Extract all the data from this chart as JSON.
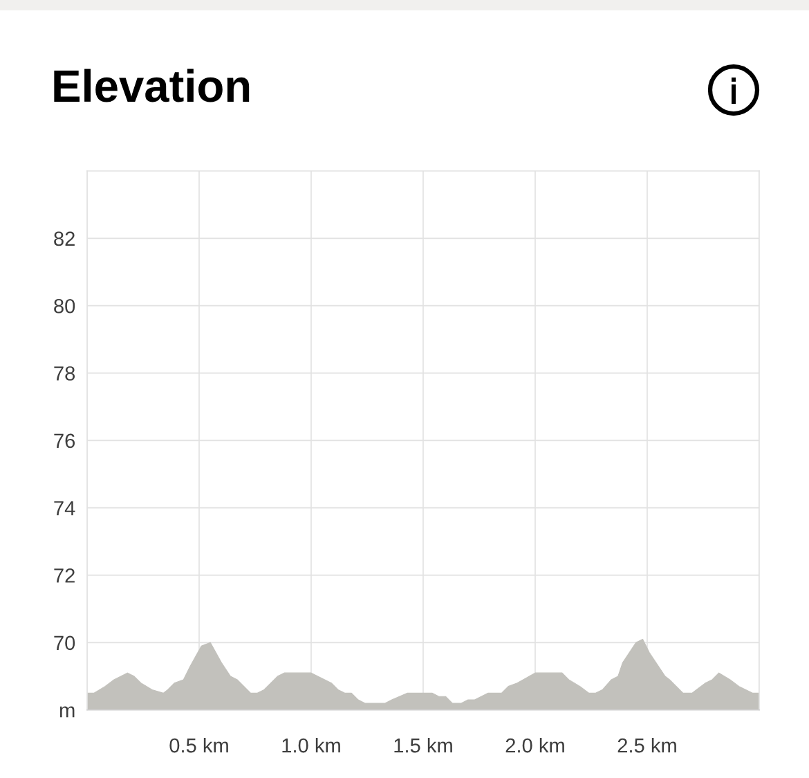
{
  "chart_data": {
    "type": "area",
    "title": "Elevation",
    "x": [
      0,
      0.03,
      0.08,
      0.12,
      0.18,
      0.21,
      0.24,
      0.29,
      0.34,
      0.36,
      0.39,
      0.43,
      0.46,
      0.51,
      0.55,
      0.6,
      0.64,
      0.67,
      0.73,
      0.76,
      0.79,
      0.85,
      0.88,
      1.0,
      1.09,
      1.12,
      1.15,
      1.18,
      1.21,
      1.24,
      1.33,
      1.36,
      1.43,
      1.54,
      1.57,
      1.6,
      1.63,
      1.67,
      1.7,
      1.73,
      1.79,
      1.85,
      1.88,
      1.92,
      2.0,
      2.12,
      2.15,
      2.2,
      2.24,
      2.27,
      2.3,
      2.34,
      2.37,
      2.39,
      2.45,
      2.48,
      2.51,
      2.54,
      2.58,
      2.6,
      2.66,
      2.7,
      2.72,
      2.76,
      2.79,
      2.82,
      2.87,
      2.91,
      2.97,
      3.0
    ],
    "values": [
      68.5,
      68.5,
      68.7,
      68.9,
      69.1,
      69.0,
      68.8,
      68.6,
      68.5,
      68.6,
      68.8,
      68.9,
      69.3,
      69.9,
      70.0,
      69.4,
      69.0,
      68.9,
      68.5,
      68.5,
      68.6,
      69.0,
      69.1,
      69.1,
      68.8,
      68.6,
      68.5,
      68.5,
      68.3,
      68.2,
      68.2,
      68.3,
      68.5,
      68.5,
      68.4,
      68.4,
      68.2,
      68.2,
      68.3,
      68.3,
      68.5,
      68.5,
      68.7,
      68.8,
      69.1,
      69.1,
      68.9,
      68.7,
      68.5,
      68.5,
      68.6,
      68.9,
      69.0,
      69.4,
      70.0,
      70.1,
      69.7,
      69.4,
      69.0,
      68.9,
      68.5,
      68.5,
      68.6,
      68.8,
      68.9,
      69.1,
      68.9,
      68.7,
      68.5,
      68.5
    ],
    "color": "#c2c1bc",
    "xlim": [
      0,
      3
    ],
    "xticks": [
      {
        "value": 0,
        "label": null
      },
      {
        "value": 0.5,
        "label": "0.5 km"
      },
      {
        "value": 1.0,
        "label": "1.0 km"
      },
      {
        "value": 1.5,
        "label": "1.5 km"
      },
      {
        "value": 2.0,
        "label": "2.0 km"
      },
      {
        "value": 2.5,
        "label": "2.5 km"
      },
      {
        "value": 3,
        "label": null
      }
    ],
    "ylim": [
      68,
      84
    ],
    "yticks": [
      {
        "value": 68,
        "label": "m"
      },
      70,
      72,
      74,
      76,
      78,
      80,
      82
    ],
    "grid": true
  }
}
